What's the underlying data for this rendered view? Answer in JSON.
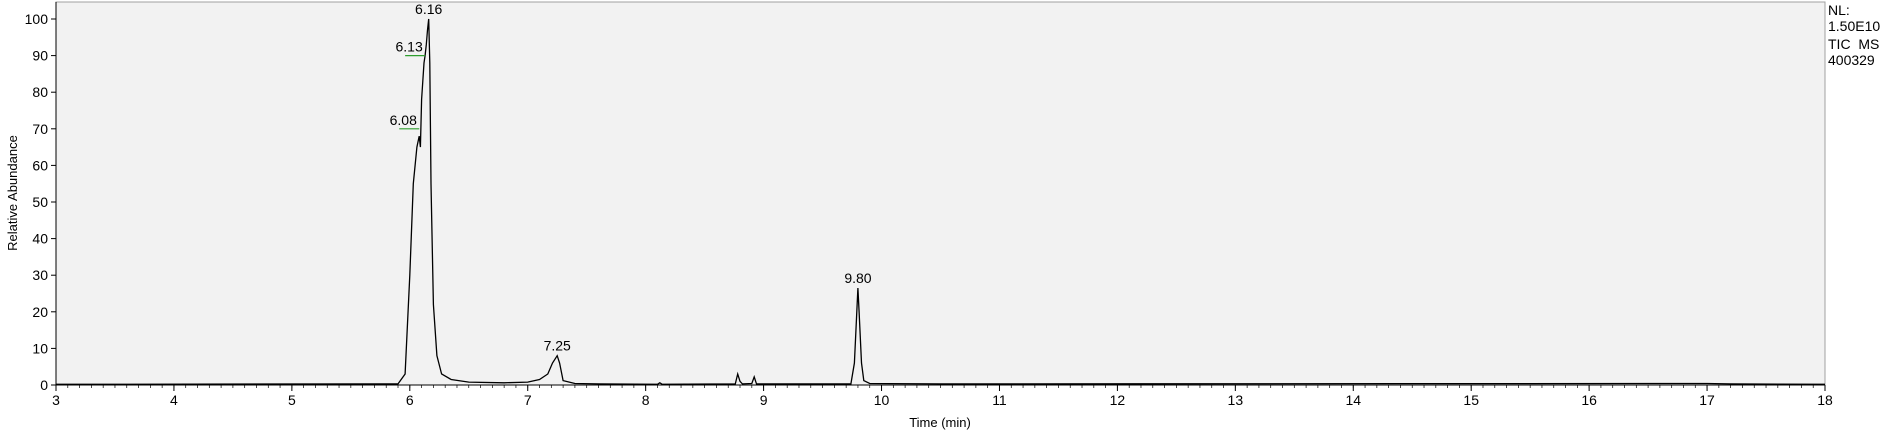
{
  "info": {
    "nl_label": "NL:",
    "nl_value": "1.50E10",
    "trace_label": "TIC  MS",
    "sample_id": "400329"
  },
  "chart_data": {
    "type": "line",
    "title": "",
    "xlabel": "Time (min)",
    "ylabel": "Relative Abundance",
    "xlim": [
      3,
      18
    ],
    "ylim": [
      0,
      100
    ],
    "xticks": [
      3,
      4,
      5,
      6,
      7,
      8,
      9,
      10,
      11,
      12,
      13,
      14,
      15,
      16,
      17,
      18
    ],
    "yticks": [
      0,
      10,
      20,
      30,
      40,
      50,
      60,
      70,
      80,
      90,
      100
    ],
    "grid": false,
    "background": "#f2f2f2",
    "line_color": "#000000",
    "marker_color": "#2e9e2e",
    "series": [
      {
        "x": [
          3.0,
          5.9,
          5.96,
          6.0,
          6.03,
          6.06,
          6.08,
          6.09,
          6.1,
          6.12,
          6.13,
          6.14,
          6.15,
          6.16,
          6.17,
          6.18,
          6.2,
          6.23,
          6.27,
          6.35,
          6.5,
          6.8,
          7.0,
          7.1,
          7.17,
          7.21,
          7.25,
          7.27,
          7.3,
          7.4,
          7.6,
          8.1,
          8.12,
          8.14,
          8.76,
          8.78,
          8.8,
          8.82,
          8.9,
          8.92,
          8.94,
          9.74,
          9.77,
          9.79,
          9.8,
          9.81,
          9.83,
          9.85,
          9.9,
          10.5,
          17.0,
          17.2,
          18.0
        ],
        "y": [
          0.2,
          0.3,
          3,
          30,
          55,
          65,
          68,
          65,
          78,
          88,
          90,
          93,
          97,
          100,
          88,
          55,
          22,
          8,
          3,
          1.5,
          0.8,
          0.6,
          0.8,
          1.5,
          3,
          6,
          8,
          6,
          1.2,
          0.4,
          0.3,
          0.2,
          0.6,
          0.2,
          0.3,
          3,
          1,
          0.3,
          0.4,
          2.2,
          0.3,
          0.3,
          6,
          20,
          26.5,
          20,
          6,
          1.2,
          0.4,
          0.3,
          0.4,
          0.3,
          0.2
        ]
      }
    ],
    "peak_labels": [
      {
        "label": "6.16",
        "x": 6.16,
        "y": 100
      },
      {
        "label": "6.13",
        "x": 6.13,
        "y": 90,
        "marker": true
      },
      {
        "label": "6.08",
        "x": 6.08,
        "y": 70,
        "marker": true
      },
      {
        "label": "7.25",
        "x": 7.25,
        "y": 8
      },
      {
        "label": "9.80",
        "x": 9.8,
        "y": 26.5
      }
    ]
  }
}
